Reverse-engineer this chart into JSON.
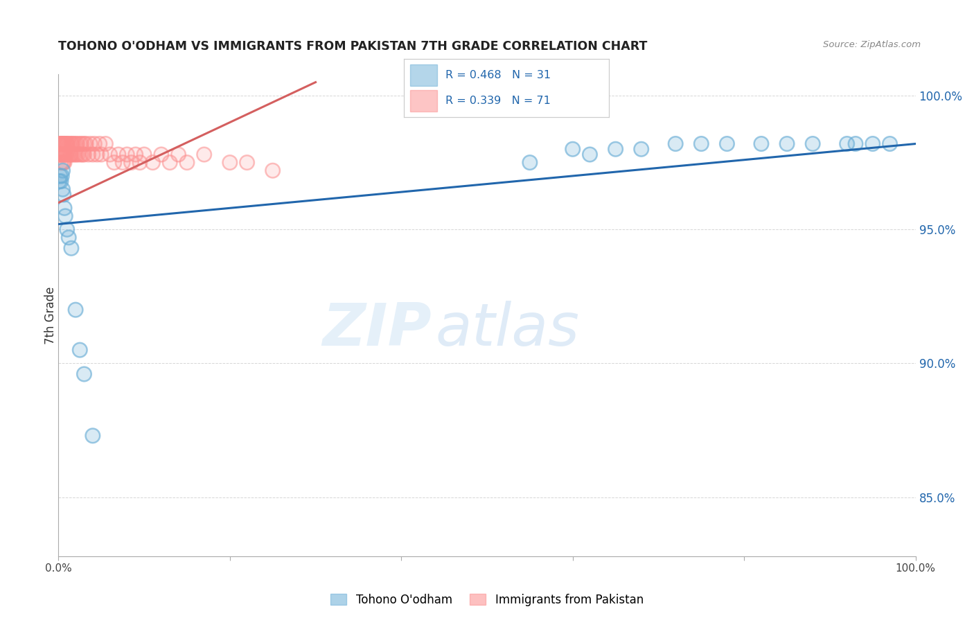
{
  "title": "TOHONO O'ODHAM VS IMMIGRANTS FROM PAKISTAN 7TH GRADE CORRELATION CHART",
  "source": "Source: ZipAtlas.com",
  "ylabel": "7th Grade",
  "ylabel_right_ticks": [
    "85.0%",
    "90.0%",
    "95.0%",
    "100.0%"
  ],
  "ylabel_right_values": [
    0.85,
    0.9,
    0.95,
    1.0
  ],
  "watermark_zip": "ZIP",
  "watermark_atlas": "atlas",
  "legend_blue_label": "Tohono O'odham",
  "legend_pink_label": "Immigrants from Pakistan",
  "R_blue": 0.468,
  "N_blue": 31,
  "R_pink": 0.339,
  "N_pink": 71,
  "blue_color": "#6baed6",
  "pink_color": "#fc8d8d",
  "blue_line_color": "#2166ac",
  "pink_line_color": "#d45f5f",
  "xmin": 0.0,
  "xmax": 1.0,
  "ymin": 0.828,
  "ymax": 1.008,
  "grid_color": "#cccccc",
  "bg_color": "#ffffff",
  "blue_x": [
    0.001,
    0.002,
    0.003,
    0.004,
    0.005,
    0.005,
    0.006,
    0.007,
    0.008,
    0.01,
    0.012,
    0.015,
    0.02,
    0.025,
    0.03,
    0.04,
    0.55,
    0.6,
    0.62,
    0.65,
    0.68,
    0.72,
    0.75,
    0.78,
    0.82,
    0.85,
    0.88,
    0.92,
    0.93,
    0.95,
    0.97
  ],
  "blue_y": [
    0.968,
    0.97,
    0.968,
    0.97,
    0.972,
    0.965,
    0.963,
    0.958,
    0.955,
    0.95,
    0.947,
    0.943,
    0.92,
    0.905,
    0.896,
    0.873,
    0.975,
    0.98,
    0.978,
    0.98,
    0.98,
    0.982,
    0.982,
    0.982,
    0.982,
    0.982,
    0.982,
    0.982,
    0.982,
    0.982,
    0.982
  ],
  "pink_x": [
    0.001,
    0.001,
    0.002,
    0.002,
    0.003,
    0.003,
    0.003,
    0.004,
    0.004,
    0.005,
    0.005,
    0.005,
    0.006,
    0.006,
    0.006,
    0.007,
    0.007,
    0.007,
    0.008,
    0.008,
    0.009,
    0.009,
    0.01,
    0.01,
    0.011,
    0.012,
    0.013,
    0.014,
    0.015,
    0.015,
    0.016,
    0.017,
    0.018,
    0.019,
    0.02,
    0.021,
    0.022,
    0.023,
    0.025,
    0.026,
    0.027,
    0.028,
    0.03,
    0.03,
    0.032,
    0.035,
    0.037,
    0.04,
    0.042,
    0.045,
    0.048,
    0.05,
    0.055,
    0.06,
    0.065,
    0.07,
    0.075,
    0.08,
    0.085,
    0.09,
    0.095,
    0.1,
    0.11,
    0.12,
    0.13,
    0.14,
    0.15,
    0.17,
    0.2,
    0.22,
    0.25
  ],
  "pink_y": [
    0.982,
    0.978,
    0.982,
    0.978,
    0.982,
    0.978,
    0.975,
    0.982,
    0.978,
    0.982,
    0.978,
    0.975,
    0.982,
    0.978,
    0.975,
    0.982,
    0.978,
    0.975,
    0.982,
    0.978,
    0.982,
    0.978,
    0.982,
    0.978,
    0.982,
    0.978,
    0.982,
    0.978,
    0.982,
    0.978,
    0.982,
    0.978,
    0.982,
    0.978,
    0.982,
    0.978,
    0.982,
    0.978,
    0.982,
    0.978,
    0.982,
    0.978,
    0.982,
    0.978,
    0.982,
    0.978,
    0.982,
    0.978,
    0.982,
    0.978,
    0.982,
    0.978,
    0.982,
    0.978,
    0.975,
    0.978,
    0.975,
    0.978,
    0.975,
    0.978,
    0.975,
    0.978,
    0.975,
    0.978,
    0.975,
    0.978,
    0.975,
    0.978,
    0.975,
    0.975,
    0.972
  ],
  "blue_line_x": [
    0.0,
    1.0
  ],
  "blue_line_y": [
    0.952,
    0.982
  ],
  "pink_line_x": [
    0.0,
    0.3
  ],
  "pink_line_y": [
    0.96,
    1.005
  ]
}
